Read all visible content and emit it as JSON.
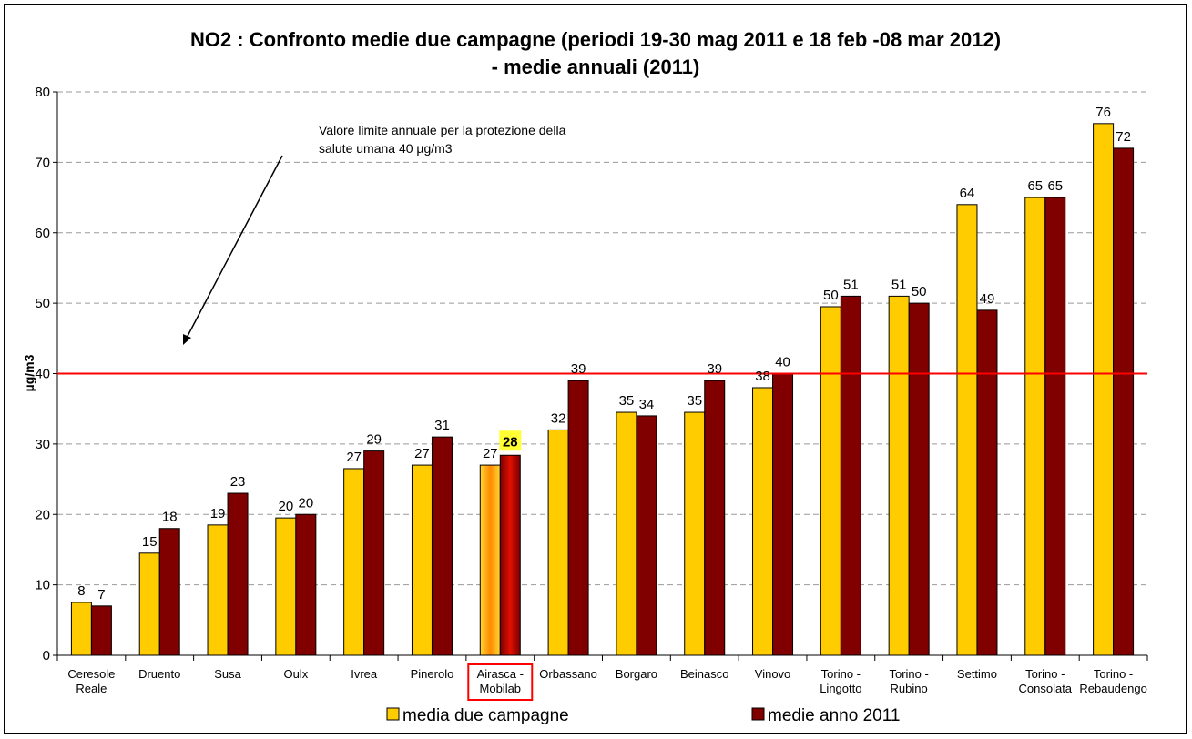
{
  "chart_data": {
    "type": "bar",
    "title_lines": [
      "NO2 : Confronto medie due campagne (periodi 19-30 mag 2011 e 18 feb -08 mar 2012)",
      "- medie annuali (2011)"
    ],
    "ylabel": "µg/m3",
    "ylim": [
      0,
      80
    ],
    "yticks": [
      0,
      10,
      20,
      30,
      40,
      50,
      60,
      70,
      80
    ],
    "grid": true,
    "categories": [
      [
        "Ceresole",
        "Reale"
      ],
      [
        "Druento"
      ],
      [
        "Susa"
      ],
      [
        "Oulx"
      ],
      [
        "Ivrea"
      ],
      [
        "Pinerolo"
      ],
      [
        "Airasca -",
        "Mobilab"
      ],
      [
        "Orbassano"
      ],
      [
        "Borgaro"
      ],
      [
        "Beinasco"
      ],
      [
        "Vinovo"
      ],
      [
        "Torino -",
        "Lingotto"
      ],
      [
        "Torino -",
        "Rubino"
      ],
      [
        "Settimo"
      ],
      [
        "Torino -",
        "Consolata"
      ],
      [
        "Torino -",
        "Rebaudengo"
      ]
    ],
    "highlight_category_index": 6,
    "series": [
      {
        "name": "media due campagne",
        "color": "#FFCC00",
        "values": [
          7.5,
          14.5,
          18.5,
          19.5,
          26.5,
          27,
          27,
          32,
          34.5,
          34.5,
          38,
          49.5,
          51,
          64,
          65,
          75.5
        ],
        "labels": [
          "8",
          "15",
          "19",
          "20",
          "27",
          "27",
          "27",
          "32",
          "35",
          "35",
          "38",
          "50",
          "51",
          "64",
          "65",
          "76"
        ]
      },
      {
        "name": "medie anno 2011",
        "color": "#800000",
        "values": [
          7,
          18,
          23,
          20,
          29,
          31,
          28.4,
          39,
          34,
          39,
          40,
          51,
          50,
          49,
          65,
          72
        ],
        "labels": [
          "7",
          "18",
          "23",
          "20",
          "29",
          "31",
          "28",
          "39",
          "34",
          "39",
          "40",
          "51",
          "50",
          "49",
          "65",
          "72"
        ]
      }
    ],
    "limit_line": {
      "value": 40,
      "color": "#FF0000"
    },
    "annotation_lines": [
      "Valore limite annuale per la protezione della",
      "salute umana 40 µg/m3"
    ],
    "legend_position": "bottom"
  }
}
